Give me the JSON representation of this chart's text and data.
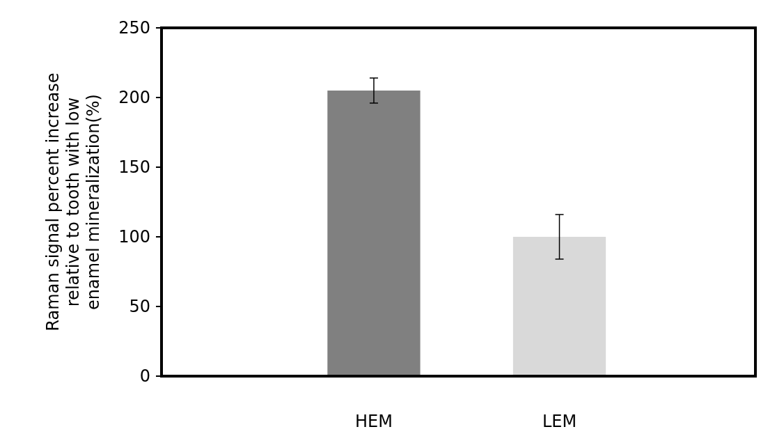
{
  "chart_data": {
    "type": "bar",
    "ylabel": "Raman signal percent increase relative to tooth with low enamel mineralization(%)",
    "categories": [
      "HEM",
      "LEM"
    ],
    "values": [
      205,
      100
    ],
    "colors": [
      "#808080",
      "#d9d9d9"
    ],
    "errors": [
      9,
      16
    ],
    "ylim": [
      0,
      250
    ],
    "yticks": [
      0,
      50,
      100,
      150,
      200,
      250
    ]
  }
}
